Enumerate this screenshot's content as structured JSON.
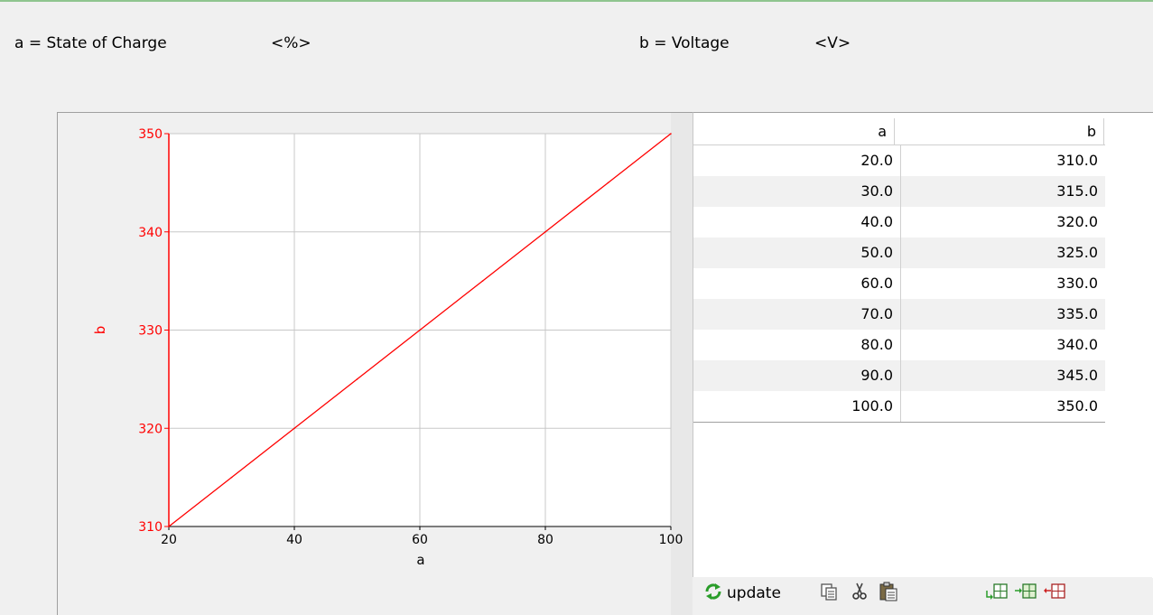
{
  "header": {
    "var_a": "a = State of Charge",
    "unit_a": "<%>",
    "var_b": "b = Voltage",
    "unit_b": "<V>"
  },
  "chart_data": {
    "type": "line",
    "xlabel": "a",
    "ylabel": "b",
    "xlim": [
      20,
      100
    ],
    "ylim": [
      310,
      350
    ],
    "x_ticks": [
      "20",
      "40",
      "60",
      "80",
      "100"
    ],
    "y_ticks": [
      "310",
      "320",
      "330",
      "340",
      "350"
    ],
    "grid": true,
    "series": [
      {
        "color": "#ff0000",
        "x": [
          20,
          30,
          40,
          50,
          60,
          70,
          80,
          90,
          100
        ],
        "y": [
          310,
          315,
          320,
          325,
          330,
          335,
          340,
          345,
          350
        ]
      }
    ]
  },
  "table": {
    "columns": [
      "a",
      "b"
    ],
    "rows": [
      [
        "20.0",
        "310.0"
      ],
      [
        "30.0",
        "315.0"
      ],
      [
        "40.0",
        "320.0"
      ],
      [
        "50.0",
        "325.0"
      ],
      [
        "60.0",
        "330.0"
      ],
      [
        "70.0",
        "335.0"
      ],
      [
        "80.0",
        "340.0"
      ],
      [
        "90.0",
        "345.0"
      ],
      [
        "100.0",
        "350.0"
      ]
    ]
  },
  "toolbar": {
    "update_label": "update",
    "icons": [
      "refresh-icon",
      "copy-icon",
      "cut-icon",
      "paste-icon",
      "insert-row-icon",
      "append-row-icon",
      "delete-row-icon"
    ]
  },
  "colors": {
    "series": "#ff0000",
    "axis": "#ff0000",
    "grid": "#c8c8c8",
    "accent_green": "#2a9d2a"
  }
}
